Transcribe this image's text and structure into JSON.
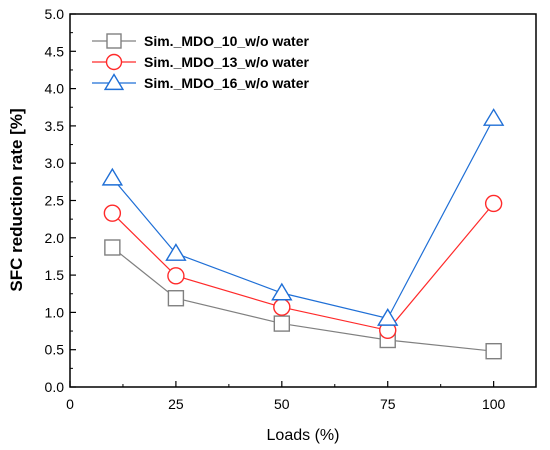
{
  "chart_data": {
    "type": "line",
    "xlabel": "Loads (%)",
    "ylabel": "SFC reduction rate [%]",
    "xlim": [
      0,
      110
    ],
    "ylim": [
      0.0,
      5.0
    ],
    "xticks": [
      "0",
      "25",
      "50",
      "75",
      "100"
    ],
    "yticks": [
      "0.0",
      "0.5",
      "1.0",
      "1.5",
      "2.0",
      "2.5",
      "3.0",
      "3.5",
      "4.0",
      "4.5",
      "5.0"
    ],
    "grid": false,
    "legend_position": "top-left",
    "series": [
      {
        "name": "Sim._MDO_10_w/o water",
        "color": "#808080",
        "marker": "square",
        "x": [
          10,
          25,
          50,
          75,
          100
        ],
        "y": [
          1.87,
          1.19,
          0.85,
          0.63,
          0.48
        ]
      },
      {
        "name": "Sim._MDO_13_w/o water",
        "color": "#ff2a2a",
        "marker": "circle",
        "x": [
          10,
          25,
          50,
          75,
          100
        ],
        "y": [
          2.33,
          1.49,
          1.07,
          0.76,
          2.46
        ]
      },
      {
        "name": "Sim._MDO_16_w/o water",
        "color": "#1f6fd6",
        "marker": "triangle",
        "x": [
          10,
          25,
          50,
          75,
          100
        ],
        "y": [
          2.8,
          1.79,
          1.26,
          0.92,
          3.6
        ]
      }
    ]
  }
}
